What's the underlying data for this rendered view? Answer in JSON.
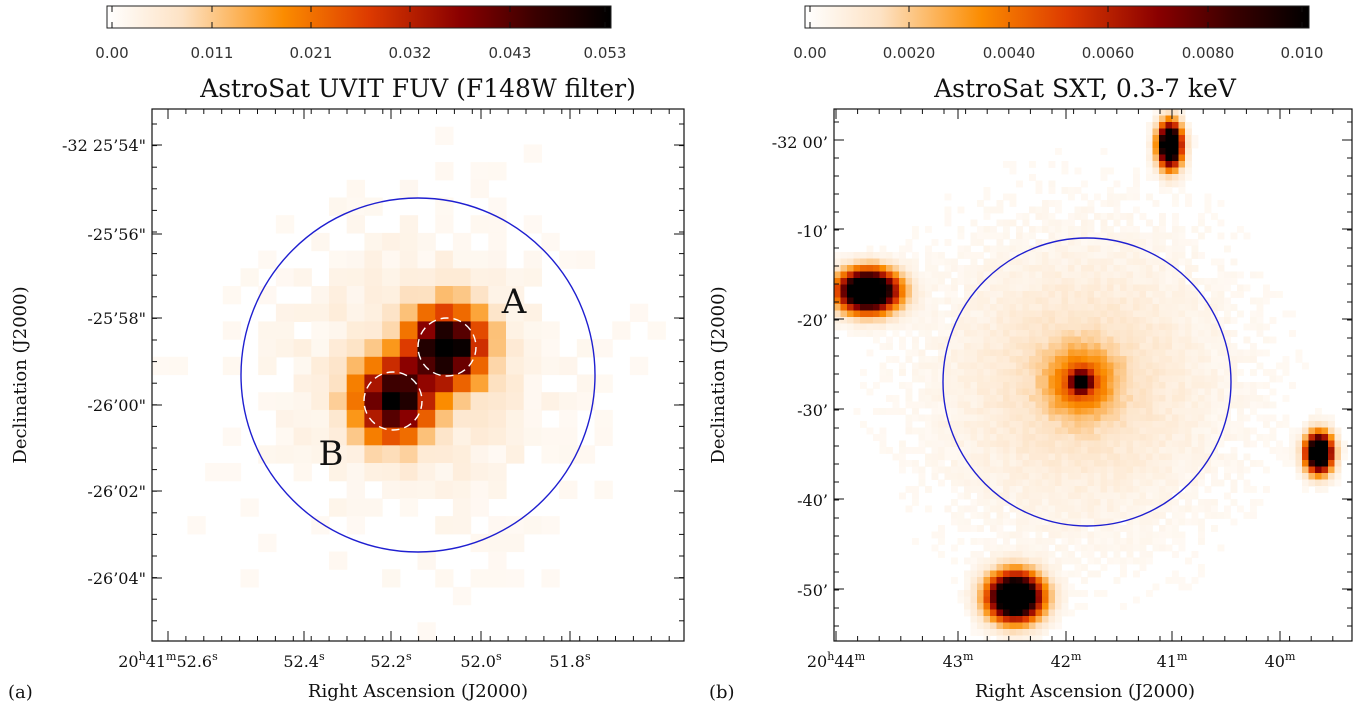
{
  "panel_a": {
    "tag": "(a)",
    "title": "AstroSat UVIT FUV (F148W filter)",
    "colorbar_ticks": [
      "0.00",
      "0.011",
      "0.021",
      "0.032",
      "0.043",
      "0.053"
    ],
    "colorbar_range": [
      0.0,
      0.053
    ],
    "xlabel": "Right Ascension (J2000)",
    "ylabel": "Declination (J2000)",
    "yticks": [
      "-32 25’54\"",
      "-25’56\"",
      "-25’58\"",
      "-26’00\"",
      "-26’02\"",
      "-26’04\""
    ],
    "xticks": [
      {
        "main": "20",
        "sup1": "h",
        "mid": "41",
        "sup2": "m",
        "tail": "52.6",
        "sup3": "s"
      },
      {
        "main": "52.4",
        "sup3": "s"
      },
      {
        "main": "52.2",
        "sup3": "s"
      },
      {
        "main": "52.0",
        "sup3": "s"
      },
      {
        "main": "51.8",
        "sup3": "s"
      }
    ],
    "sources": [
      "A",
      "B"
    ],
    "circle_color": "#1f1fd0",
    "source_circle_color": "#ffffff"
  },
  "panel_b": {
    "tag": "(b)",
    "title": "AstroSat SXT, 0.3-7 keV",
    "colorbar_ticks": [
      "0.00",
      "0.0020",
      "0.0040",
      "0.0060",
      "0.0080",
      "0.010"
    ],
    "colorbar_range": [
      0.0,
      0.01
    ],
    "xlabel": "Right Ascension (J2000)",
    "ylabel": "Declination (J2000)",
    "yticks": [
      "-32 00’",
      "-10’",
      "-20’",
      "-30’",
      "-40’",
      "-50’"
    ],
    "xticks": [
      {
        "main": "20",
        "sup1": "h",
        "mid": "44",
        "sup2": "m"
      },
      {
        "main": "43",
        "sup2": "m"
      },
      {
        "main": "42",
        "sup2": "m"
      },
      {
        "main": "41",
        "sup2": "m"
      },
      {
        "main": "40",
        "sup2": "m"
      }
    ],
    "circle_color": "#1f1fd0"
  },
  "colormap": [
    "#ffffff",
    "#fde7cf",
    "#fb8c00",
    "#dd3700",
    "#8a0000",
    "#3a0000",
    "#000000"
  ]
}
